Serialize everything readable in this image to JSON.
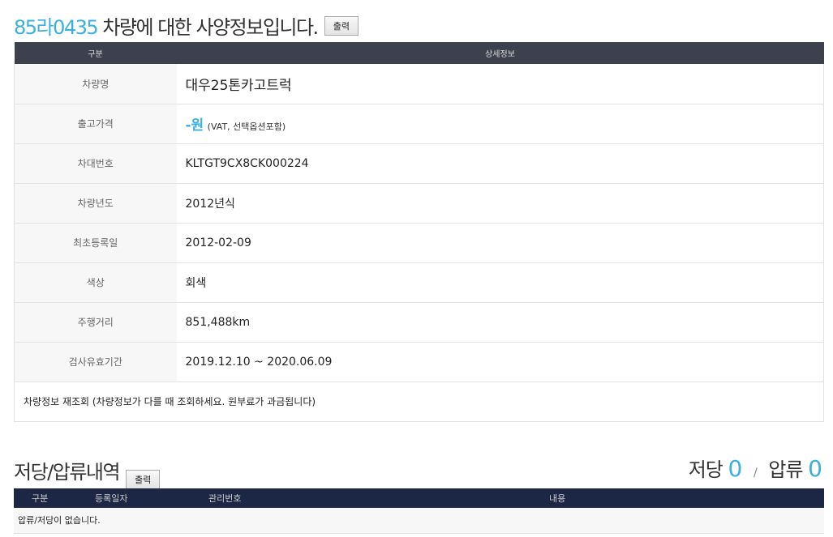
{
  "header": {
    "plate": "85라0435",
    "title_suffix": "차량에 대한 사양정보입니다.",
    "print_label": "출력"
  },
  "spec_table": {
    "columns": [
      "구분",
      "상세정보"
    ],
    "rows": [
      {
        "label": "차량명",
        "value": "대우25톤카고트럭"
      },
      {
        "label": "출고가격",
        "value": "-원",
        "note": "(VAT, 선택옵션포함)"
      },
      {
        "label": "차대번호",
        "value": "KLTGT9CX8CK000224"
      },
      {
        "label": "차량년도",
        "value": "2012년식"
      },
      {
        "label": "최초등록일",
        "value": "2012-02-09"
      },
      {
        "label": "색상",
        "value": "회색"
      },
      {
        "label": "주행거리",
        "value": "851,488km"
      },
      {
        "label": "검사유효기간",
        "value": "2019.12.10 ~ 2020.06.09"
      }
    ],
    "footer": "차량정보 재조회 (차량정보가 다를 때 조회하세요. 원부료가 과금됩니다)"
  },
  "lien": {
    "title": "저당/압류내역",
    "print_label": "출력",
    "mortgage_label": "저당",
    "mortgage_count": "0",
    "separator": "/",
    "seizure_label": "압류",
    "seizure_count": "0",
    "columns": [
      "구분",
      "등록일자",
      "관리번호",
      "내용"
    ],
    "empty_message": "압류/저당이 없습니다."
  },
  "colors": {
    "accent": "#3ab0e0",
    "spec_header": "#3c414d",
    "lien_header": "#1b2744"
  }
}
